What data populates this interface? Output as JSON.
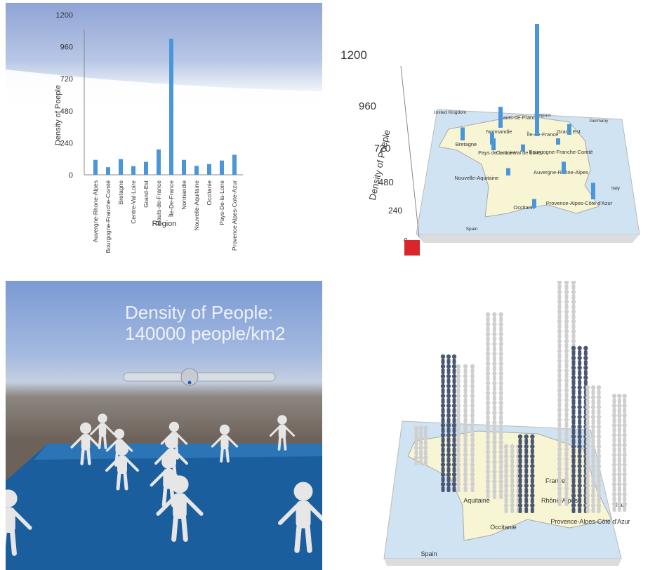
{
  "chart_data": [
    {
      "type": "bar",
      "ylabel": "Density of Poeple",
      "xlabel": "Region",
      "ylim": [
        0,
        1200
      ],
      "yticks": [
        0,
        240,
        480,
        720,
        960,
        1200
      ],
      "categories": [
        "Auvergne-Rhone-Alpes",
        "Bourgogne-Franche-Comté",
        "Bretagne",
        "Centre-Val-Loire",
        "Grand-Est",
        "Hauts-de-France",
        "Île-De-France",
        "Normandie",
        "Nouvelle-Aquitaine",
        "Occitanie",
        "Pays-De-la-Loire",
        "Provence Alpes-Cote-Azur"
      ],
      "values": [
        112,
        57,
        118,
        65,
        97,
        190,
        1020,
        112,
        67,
        80,
        107,
        150
      ],
      "colors": {
        "bar": "#4a96d9",
        "axis": "#888888"
      }
    },
    {
      "type": "bar",
      "view": "3d-map",
      "ylabel": "Density of Poeple",
      "yticks": [
        "1200",
        "960",
        "720",
        "480",
        "240",
        "0"
      ],
      "map_labels": [
        "United Kingdom",
        "Belgium",
        "Germany",
        "Hauts-de-France",
        "Normandie",
        "Île-de-France",
        "Grand Est",
        "Bretagne",
        "Pays de la Loire",
        "Centre-Val de Loire",
        "Bourgogne-Franche-Comté",
        "Nouvelle-Aquitaine",
        "Auvergne-Rhône-Alpes",
        "Italy",
        "Occitanie",
        "Provence-Alpes-Côte d'Azur",
        "Spain"
      ],
      "colors": {
        "bar": "#4a96d9",
        "land": "#f8f5d4",
        "sea": "#cfe3f3",
        "marker": "#d9262c"
      }
    },
    {
      "type": "other",
      "view": "vr-people",
      "title": "Density of People:\n140000 people/km2",
      "slider": {
        "value": 0.43
      },
      "colors": {
        "floor": "#1b5e9e",
        "figure": "#e6e6e6"
      }
    },
    {
      "type": "other",
      "view": "3d-map-people",
      "map_labels": [
        "Aquitaine",
        "Rhône-Alpes",
        "France",
        "Italy",
        "Occitanie",
        "Provence-Alpes-Côte d'Azur",
        "Spain"
      ],
      "colors": {
        "figure": "#cfcfcf",
        "figure_dark": "#4a5873",
        "land": "#f8f5d4"
      }
    }
  ]
}
